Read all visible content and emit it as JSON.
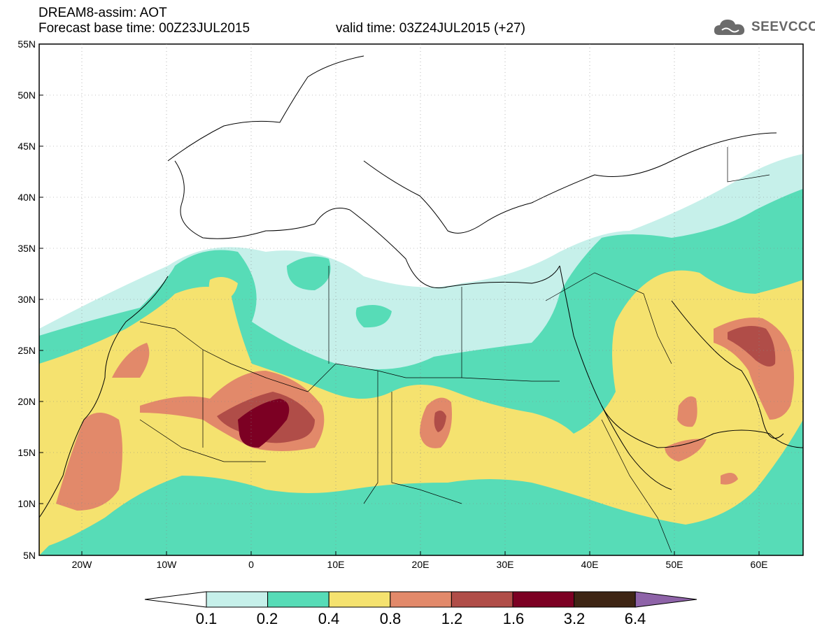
{
  "header": {
    "title": "DREAM8-assim: AOT",
    "base_time": "Forecast base time: 00Z23JUL2015",
    "valid_time": "valid time: 03Z24JUL2015 (+27)"
  },
  "logo": {
    "text": "SEEVCCC",
    "icon": "cloud-icon"
  },
  "map": {
    "lat_labels": [
      "55N",
      "50N",
      "45N",
      "40N",
      "35N",
      "30N",
      "25N",
      "20N",
      "15N",
      "10N",
      "5N"
    ],
    "lon_labels": [
      "20W",
      "10W",
      "0",
      "10E",
      "20E",
      "30E",
      "40E",
      "50E",
      "60E"
    ]
  },
  "colorbar": {
    "labels": [
      "0.1",
      "0.2",
      "0.4",
      "0.8",
      "1.2",
      "1.6",
      "3.2",
      "6.4"
    ],
    "colors": [
      "#ffffff",
      "#c6f0ea",
      "#57dcb7",
      "#f5e26f",
      "#e2896a",
      "#b04d48",
      "#7c0023",
      "#3e2514",
      "#8e63a8"
    ]
  }
}
